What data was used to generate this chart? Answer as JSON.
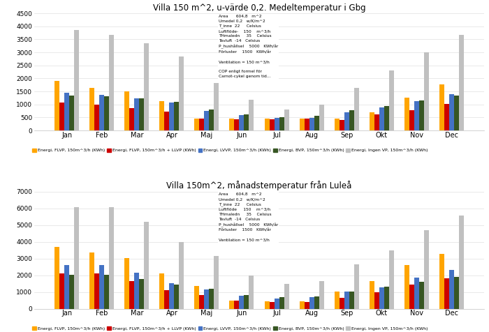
{
  "title1": "Villa 150 m^2, u-värde 0,2. Medeltemperatur i Gbg",
  "title2": "Villa 150m^2, månadstemperatur från Luleå",
  "months": [
    "Jan",
    "Feb",
    "Mar",
    "Apr",
    "Maj",
    "Jun",
    "Jul",
    "Aug",
    "Sep",
    "Okt",
    "Nov",
    "Dec"
  ],
  "legend_labels": [
    "Energi, FLVP, 150m^3/h (KWh)",
    "Energi, FLVP, 150m^3/h + LLVP (KWh)",
    "Energi, LVVP, 150m^3/h (KWh)",
    "Energi, BVP, 150m^3/h (KWh)",
    "Energi, Ingen VP, 150m^3/h (KWh)"
  ],
  "colors": [
    "#FFA500",
    "#CC0000",
    "#4472C4",
    "#375623",
    "#C0C0C0"
  ],
  "gbg": {
    "flvp": [
      1900,
      1650,
      1500,
      1120,
      460,
      470,
      460,
      460,
      470,
      700,
      1260,
      1760
    ],
    "flvp_llvp": [
      1080,
      1000,
      870,
      720,
      450,
      420,
      420,
      450,
      400,
      620,
      790,
      1030
    ],
    "lvvp": [
      1460,
      1360,
      1240,
      1080,
      760,
      580,
      490,
      480,
      690,
      900,
      1140,
      1390
    ],
    "bvp": [
      1350,
      1310,
      1230,
      1100,
      810,
      630,
      510,
      570,
      770,
      950,
      1150,
      1340
    ],
    "ingen_vp": [
      3850,
      3680,
      3340,
      2840,
      1820,
      1170,
      820,
      990,
      1650,
      2310,
      3010,
      3680
    ]
  },
  "lul": {
    "flvp": [
      3680,
      3380,
      3010,
      2100,
      1380,
      490,
      440,
      450,
      1020,
      1650,
      2600,
      3270
    ],
    "flvp_llvp": [
      2130,
      2110,
      1660,
      1120,
      840,
      480,
      420,
      420,
      660,
      980,
      1430,
      1820
    ],
    "lvvp": [
      2590,
      2600,
      2150,
      1510,
      1160,
      780,
      620,
      680,
      1010,
      1290,
      1870,
      2320
    ],
    "bvp": [
      2010,
      2020,
      1770,
      1450,
      1200,
      840,
      680,
      750,
      1040,
      1300,
      1620,
      1890
    ],
    "ingen_vp": [
      6060,
      6070,
      5180,
      4000,
      3170,
      2000,
      1490,
      1650,
      2660,
      3500,
      4680,
      5550
    ]
  },
  "annotation1": "Area      604,8   m^2\nUmedel 0,2   w/K/m^2\nT_inne  22     Celsius\nLuftflöde-    150    m^3/h\nTHmaledn     35    Celsius\nTavluft  -14   Celsius\nP_hushållsel    5000   KWh/år\nFörluster    1500   KWh/år\n\nVentilation = 150 m^3/h\n\nCOP enligt formel för\nCarnot-cykel genom tid...",
  "annotation2": "Area      604,8   m^2\nUmedel 0,2   w/K/m^2\nT_inne  22     Celsius\nLuftflöde     150    m^3/h\nTHmaledn     35    Celsius\nTavluft  -14   Celsius\nP_hushållsel    5000   KWh/år\nFörluster    1500   KWh/år\n\nVentilation = 150 m^3/h",
  "ylim1": [
    0,
    4500
  ],
  "ylim2": [
    0,
    7000
  ],
  "yticks1": [
    0,
    500,
    1000,
    1500,
    2000,
    2500,
    3000,
    3500,
    4000,
    4500
  ],
  "yticks2": [
    0,
    1000,
    2000,
    3000,
    4000,
    5000,
    6000,
    7000
  ]
}
